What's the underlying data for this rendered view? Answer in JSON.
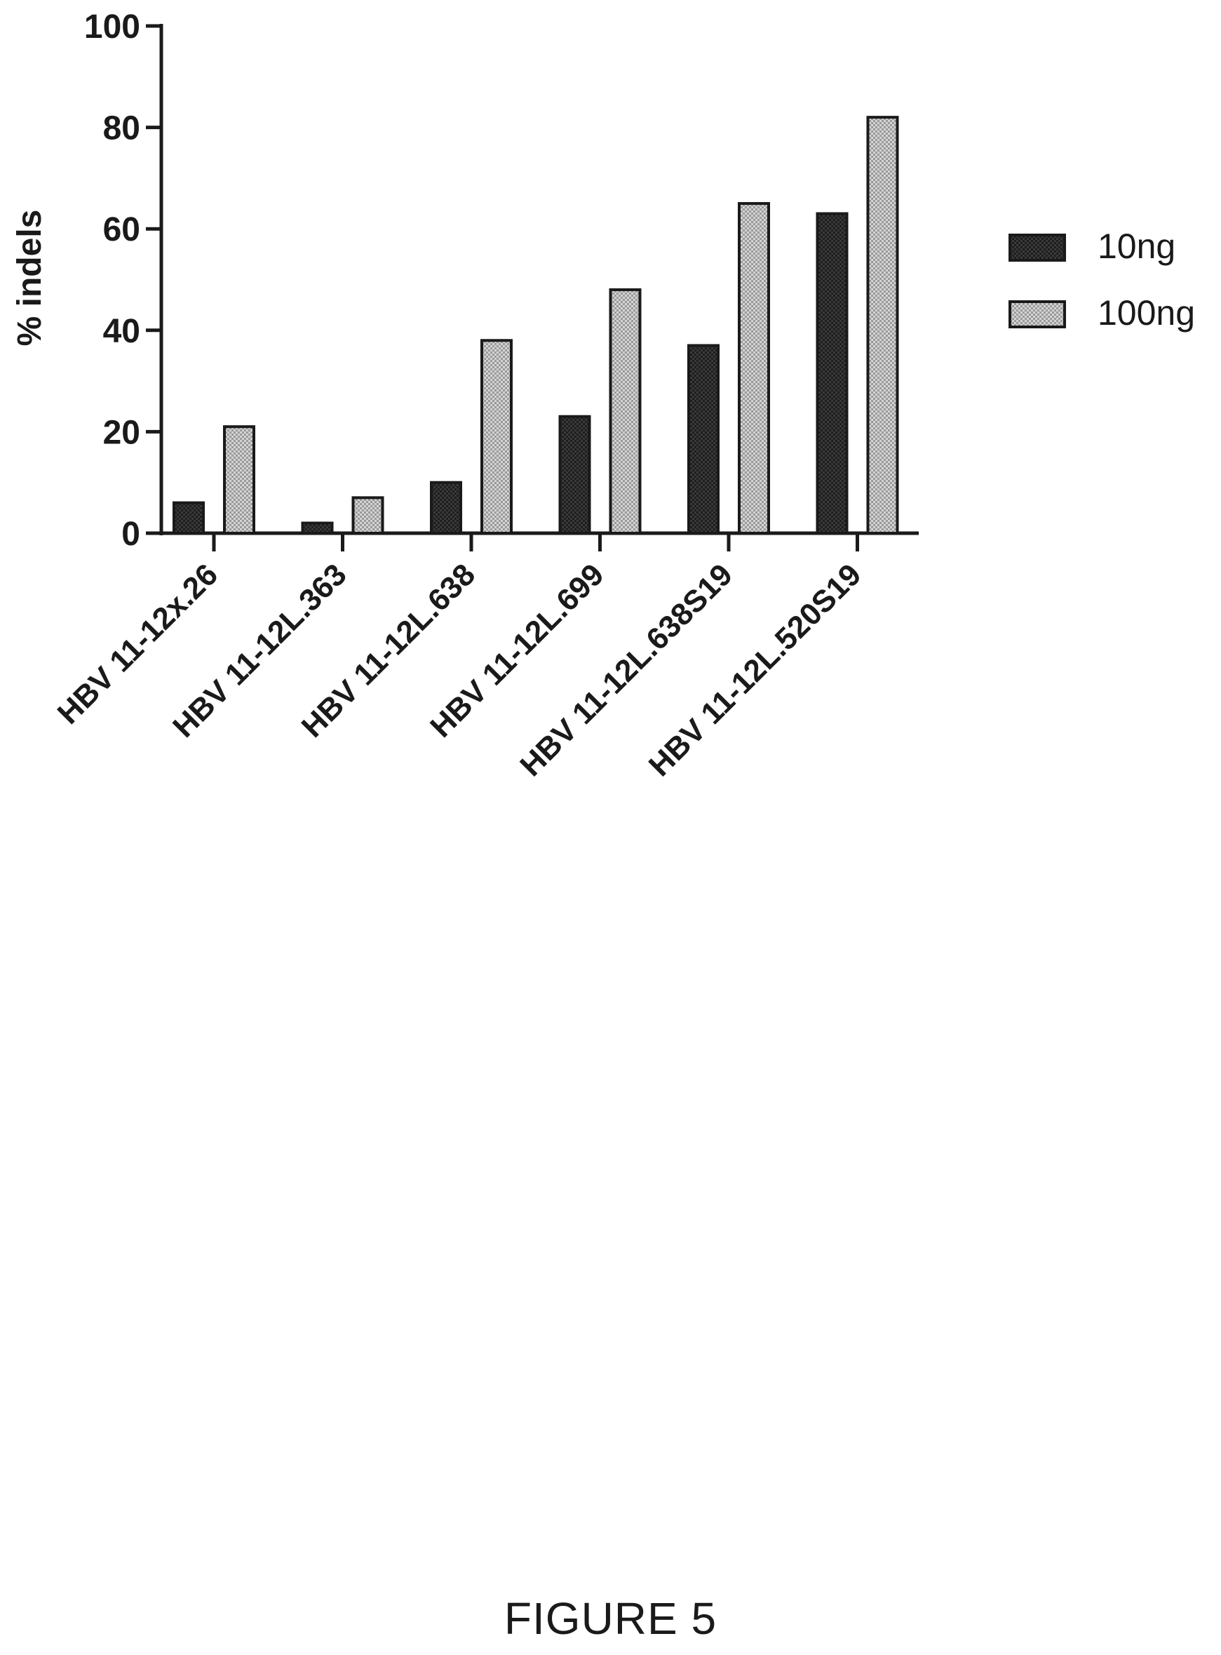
{
  "chart_data": {
    "type": "bar",
    "title": "",
    "xlabel": "",
    "ylabel": "% indels",
    "ylim": [
      0,
      100
    ],
    "yticks": [
      0,
      20,
      40,
      60,
      80,
      100
    ],
    "categories": [
      "HBV 11-12x.26",
      "HBV 11-12L.363",
      "HBV 11-12L.638",
      "HBV 11-12L.699",
      "HBV 11-12L.638S19",
      "HBV 11-12L.520S19"
    ],
    "series": [
      {
        "name": "10ng",
        "values": [
          6,
          2,
          10,
          23,
          37,
          63
        ],
        "color": "#2b2b2b"
      },
      {
        "name": "100ng",
        "values": [
          21,
          7,
          38,
          48,
          65,
          82
        ],
        "color": "#b8b8b8"
      }
    ],
    "legend_position": "right",
    "grid": false
  },
  "caption": "FIGURE 5"
}
